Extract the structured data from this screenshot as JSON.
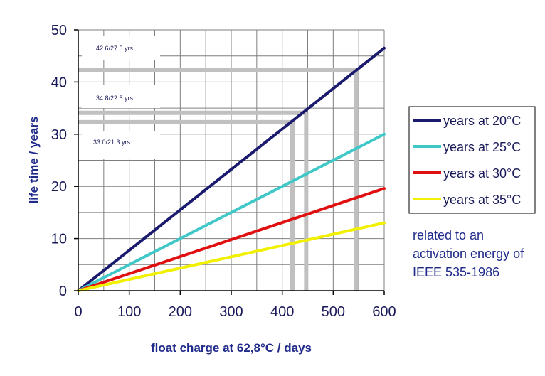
{
  "chart_data": {
    "type": "line",
    "xlabel": "float charge at 62,8°C  /  days",
    "ylabel": "life time  /  years",
    "xlim": [
      0,
      600
    ],
    "ylim": [
      0,
      50
    ],
    "xticks": [
      0,
      100,
      200,
      300,
      400,
      500,
      600
    ],
    "yticks": [
      0,
      10,
      20,
      30,
      40,
      50
    ],
    "grid": true,
    "legend_position": "right",
    "series": [
      {
        "name": "years at 20°C",
        "color": "#1a1a6e",
        "x": [
          0,
          600
        ],
        "y": [
          0,
          46.5
        ]
      },
      {
        "name": "years at 25°C",
        "color": "#40c8c8",
        "x": [
          0,
          600
        ],
        "y": [
          0,
          30
        ]
      },
      {
        "name": "years at 30°C",
        "color": "#e01010",
        "x": [
          0,
          600
        ],
        "y": [
          0,
          19.6
        ]
      },
      {
        "name": "years at 35°C",
        "color": "#f0f000",
        "x": [
          0,
          600
        ],
        "y": [
          0,
          13
        ]
      }
    ],
    "reference_lines": [
      {
        "label": "42.6/27.5 yrs",
        "x": 545,
        "y": 42.3
      },
      {
        "label": "34.8/22.5 yrs",
        "x": 447,
        "y": 34.1
      },
      {
        "label": "33.0/21.3 yrs",
        "x": 420,
        "y": 32.3
      }
    ],
    "note": [
      "related to an",
      "activation energy of",
      "IEEE 535-1986"
    ]
  }
}
